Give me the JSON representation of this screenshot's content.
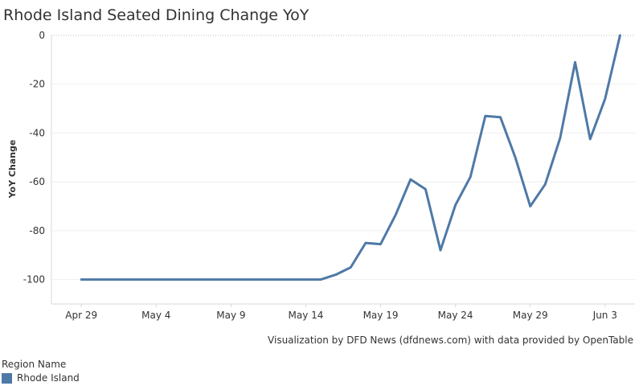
{
  "chart_data": {
    "type": "line",
    "title": "Rhode Island Seated Dining Change YoY",
    "ylabel": "YoY Change",
    "xlabel": "",
    "ylim": [
      -110,
      0
    ],
    "yticks": [
      0,
      -20,
      -40,
      -60,
      -80,
      -100
    ],
    "ytick_labels": [
      "0",
      "-20",
      "-40",
      "-60",
      "-80",
      "-100"
    ],
    "xticks": [
      {
        "date": "2020-04-29",
        "label": "Apr 29"
      },
      {
        "date": "2020-05-04",
        "label": "May 4"
      },
      {
        "date": "2020-05-09",
        "label": "May 9"
      },
      {
        "date": "2020-05-14",
        "label": "May 14"
      },
      {
        "date": "2020-05-19",
        "label": "May 19"
      },
      {
        "date": "2020-05-24",
        "label": "May 24"
      },
      {
        "date": "2020-05-29",
        "label": "May 29"
      },
      {
        "date": "2020-06-03",
        "label": "Jun 3"
      }
    ],
    "xlim": [
      "2020-04-27",
      "2020-06-05"
    ],
    "grid": true,
    "series": [
      {
        "name": "Rhode Island",
        "color": "#4e79a7",
        "points": [
          {
            "x": "2020-04-29",
            "y": -100
          },
          {
            "x": "2020-04-30",
            "y": -100
          },
          {
            "x": "2020-05-01",
            "y": -100
          },
          {
            "x": "2020-05-02",
            "y": -100
          },
          {
            "x": "2020-05-03",
            "y": -100
          },
          {
            "x": "2020-05-04",
            "y": -100
          },
          {
            "x": "2020-05-05",
            "y": -100
          },
          {
            "x": "2020-05-06",
            "y": -100
          },
          {
            "x": "2020-05-07",
            "y": -100
          },
          {
            "x": "2020-05-08",
            "y": -100
          },
          {
            "x": "2020-05-09",
            "y": -100
          },
          {
            "x": "2020-05-10",
            "y": -100
          },
          {
            "x": "2020-05-11",
            "y": -100
          },
          {
            "x": "2020-05-12",
            "y": -100
          },
          {
            "x": "2020-05-13",
            "y": -100
          },
          {
            "x": "2020-05-14",
            "y": -100
          },
          {
            "x": "2020-05-15",
            "y": -100
          },
          {
            "x": "2020-05-16",
            "y": -98
          },
          {
            "x": "2020-05-17",
            "y": -95
          },
          {
            "x": "2020-05-18",
            "y": -85
          },
          {
            "x": "2020-05-19",
            "y": -85.5
          },
          {
            "x": "2020-05-20",
            "y": -73.5
          },
          {
            "x": "2020-05-21",
            "y": -59
          },
          {
            "x": "2020-05-22",
            "y": -63
          },
          {
            "x": "2020-05-23",
            "y": -88
          },
          {
            "x": "2020-05-24",
            "y": -69.5
          },
          {
            "x": "2020-05-25",
            "y": -58
          },
          {
            "x": "2020-05-26",
            "y": -33
          },
          {
            "x": "2020-05-27",
            "y": -33.5
          },
          {
            "x": "2020-05-28",
            "y": -50
          },
          {
            "x": "2020-05-29",
            "y": -70
          },
          {
            "x": "2020-05-30",
            "y": -61
          },
          {
            "x": "2020-05-31",
            "y": -42
          },
          {
            "x": "2020-06-01",
            "y": -11
          },
          {
            "x": "2020-06-02",
            "y": -42.5
          },
          {
            "x": "2020-06-03",
            "y": -26
          },
          {
            "x": "2020-06-04",
            "y": 0
          }
        ]
      }
    ],
    "legend": {
      "title": "Region Name",
      "placement": "bottom-left",
      "items": [
        {
          "label": "Rhode Island",
          "color": "#4e79a7"
        }
      ]
    },
    "annotation": "Visualization by DFD News (dfdnews.com) with data provided by OpenTable"
  }
}
